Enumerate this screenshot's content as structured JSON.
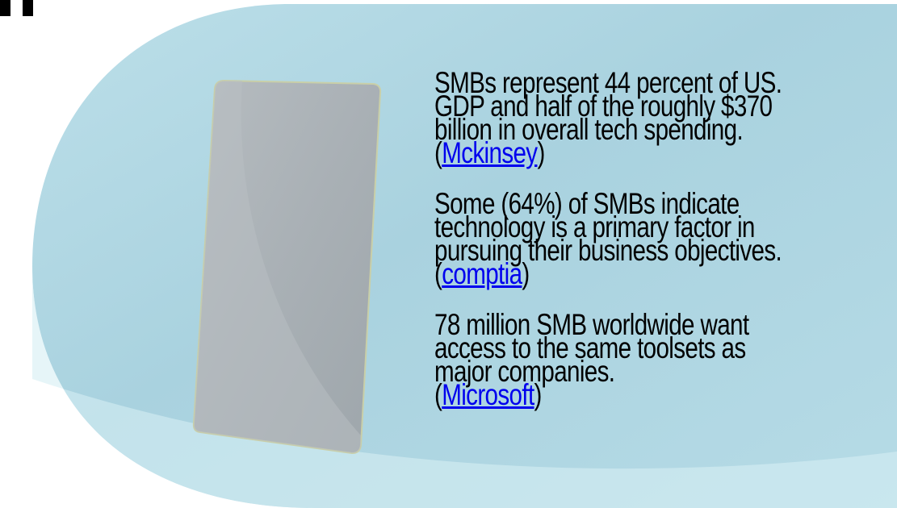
{
  "paragraphs": [
    {
      "lines": [
        "SMBs represent 44 percent of US.",
        "GDP and half of the roughly $370",
        "billion in overall tech spending."
      ],
      "before": "(",
      "link": "Mckinsey",
      "after": ")"
    },
    {
      "lines": [
        "Some (64%) of SMBs indicate",
        "technology is a primary factor in",
        "pursuing their business objectives."
      ],
      "before": "(",
      "link": "comptia",
      "after": ")"
    },
    {
      "lines": [
        "78 million SMB worldwide want",
        "access to the same toolsets as",
        "major companies."
      ],
      "before": "(",
      "link": "Microsoft",
      "after": ")"
    }
  ]
}
